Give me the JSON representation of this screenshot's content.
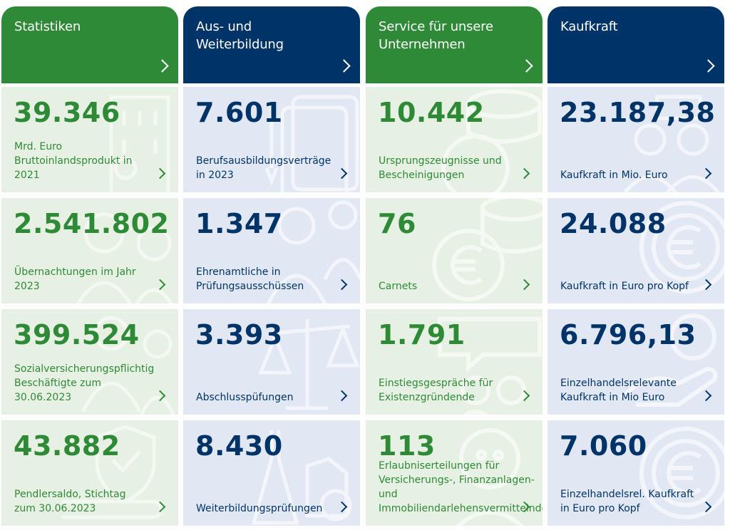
{
  "columns": [
    {
      "key": "statistiken",
      "theme": "green",
      "title": "Statistiken",
      "tiles": [
        {
          "value": "39.346",
          "label": "Mrd. Euro Bruttoinlandsprodukt in 2021"
        },
        {
          "value": "2.541.802",
          "label": "Übernachtungen im Jahr 2023"
        },
        {
          "value": "399.524",
          "label": "Sozialversicherungspflichtig Beschäftigte zum 30.06.2023"
        },
        {
          "value": "43.882",
          "label": "Pendlersaldo, Stichtag zum 30.06.2023"
        }
      ]
    },
    {
      "key": "aus-und-weiterbildung",
      "theme": "blue",
      "title": "Aus- und Weiterbildung",
      "tiles": [
        {
          "value": "7.601",
          "label": "Berufsausbildungsverträge in 2023"
        },
        {
          "value": "1.347",
          "label": "Ehrenamtliche in Prüfungsausschüssen"
        },
        {
          "value": "3.393",
          "label": "Abschlusspüfungen"
        },
        {
          "value": "8.430",
          "label": "Weiterbildungsprüfungen"
        }
      ]
    },
    {
      "key": "service",
      "theme": "green",
      "title": "Service für unsere Unternehmen",
      "tiles": [
        {
          "value": "10.442",
          "label": "Ursprungszeugnisse und Bescheinigungen"
        },
        {
          "value": "76",
          "label": "Carnets"
        },
        {
          "value": "1.791",
          "label": "Einstiegsgespräche für Existenzgründende"
        },
        {
          "value": "113",
          "label": "Erlaubniserteilungen für Versicherungs-, Finanzanlagen- und Immobiliendarlehensvermittelnde"
        }
      ]
    },
    {
      "key": "kaufkraft",
      "theme": "blue",
      "title": "Kaufkraft",
      "tiles": [
        {
          "value": "23.187,38",
          "label": "Kaufkraft in Mio. Euro"
        },
        {
          "value": "24.088",
          "label": "Kaufkraft in Euro pro Kopf"
        },
        {
          "value": "6.796,13",
          "label": "Einzelhandelsrelevante Kaufkraft in Mio Euro"
        },
        {
          "value": "7.060",
          "label": "Einzelhandelsrel. Kaufkraft in Euro pro Kopf"
        }
      ]
    }
  ],
  "colors": {
    "green": "#2e8a36",
    "blue": "#003468",
    "green_tile_bg": "#e6f0e3",
    "blue_tile_bg": "#e1e8f3"
  },
  "icons": {
    "header_chevron": "chevron-right-icon",
    "tile_chevron": "chevron-right-icon",
    "decorations": [
      "building-icon",
      "people-icon",
      "scales-icon",
      "shield-check-icon",
      "document-pen-icon",
      "coins-euro-icon",
      "chat-bubble-icon",
      "euro-coin-icon"
    ]
  }
}
